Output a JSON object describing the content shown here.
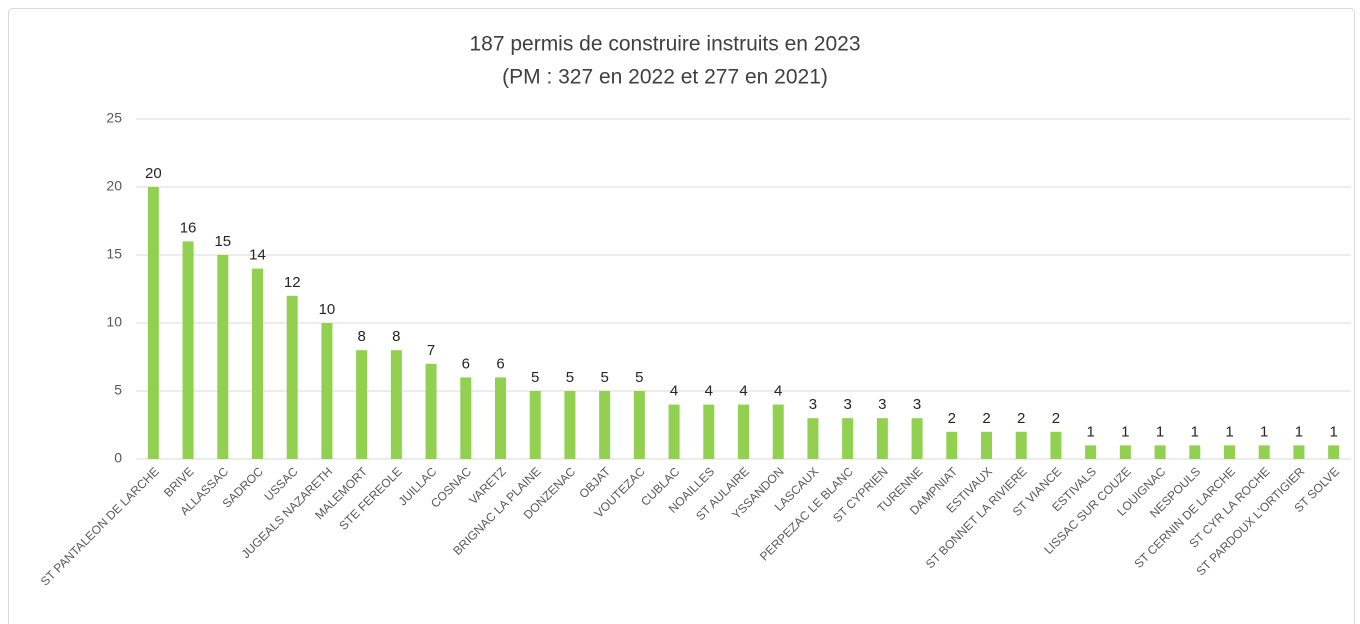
{
  "chart_data": {
    "type": "bar",
    "title": "187 permis de construire instruits en 2023",
    "subtitle": "(PM : 327 en 2022 et  277 en 2021)",
    "categories": [
      "ST PANTALEON DE LARCHE",
      "BRIVE",
      "ALLASSAC",
      "SADROC",
      "USSAC",
      "JUGEALS NAZARETH",
      "MALEMORT",
      "STE FEREOLE",
      "JUILLAC",
      "COSNAC",
      "VARETZ",
      "BRIGNAC LA PLAINE",
      "DONZENAC",
      "OBJAT",
      "VOUTEZAC",
      "CUBLAC",
      "NOAILLES",
      "ST AULAIRE",
      "YSSANDON",
      "LASCAUX",
      "PERPEZAC LE BLANC",
      "ST CYPRIEN",
      "TURENNE",
      "DAMPNIAT",
      "ESTIVAUX",
      "ST BONNET LA RIVIERE",
      "ST VIANCE",
      "ESTIVALS",
      "LISSAC SUR COUZE",
      "LOUIGNAC",
      "NESPOULS",
      "ST CERNIN DE LARCHE",
      "ST CYR LA ROCHE",
      "ST PARDOUX L'ORTIGIER",
      "ST SOLVE"
    ],
    "values": [
      20,
      16,
      15,
      14,
      12,
      10,
      8,
      8,
      7,
      6,
      6,
      5,
      5,
      5,
      5,
      4,
      4,
      4,
      4,
      3,
      3,
      3,
      3,
      2,
      2,
      2,
      2,
      1,
      1,
      1,
      1,
      1,
      1,
      1,
      1
    ],
    "color": "#92d050",
    "ylim": [
      0,
      25
    ],
    "yticks": [
      0,
      5,
      10,
      15,
      20,
      25
    ],
    "grid": true
  }
}
